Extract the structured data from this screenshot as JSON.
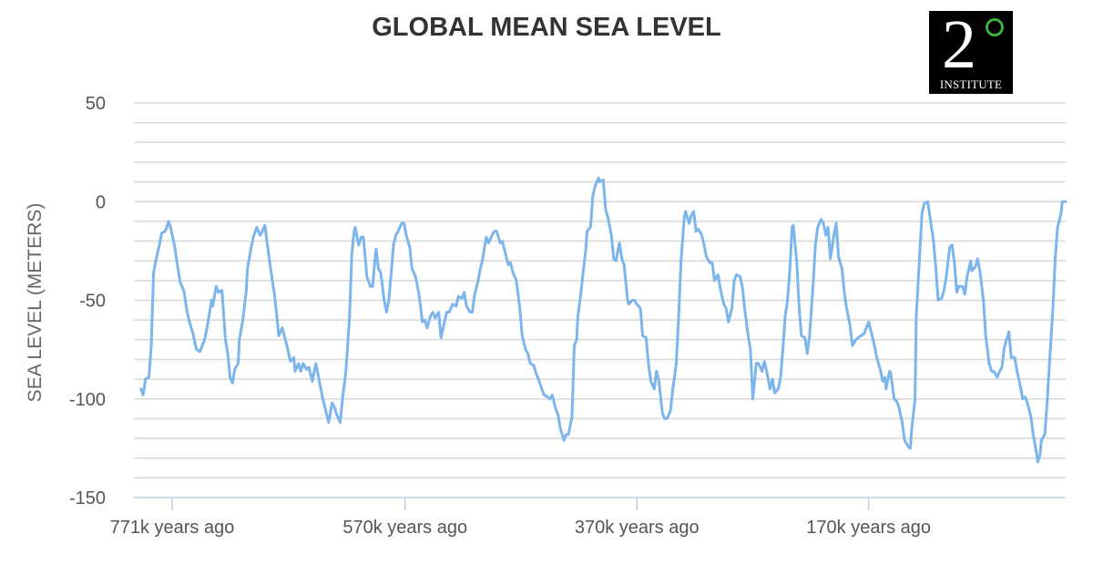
{
  "chart_data": {
    "type": "line",
    "title": "GLOBAL MEAN SEA LEVEL",
    "xlabel": "",
    "ylabel": "SEA LEVEL (METERS)",
    "xlim": [
      804,
      0
    ],
    "ylim": [
      -150,
      50
    ],
    "x_unit": "thousand years ago",
    "x_ticks": [
      771,
      570,
      370,
      170
    ],
    "x_tick_labels": [
      "771k years ago",
      "570k years ago",
      "370k years ago",
      "170k years ago"
    ],
    "y_ticks": [
      50,
      0,
      -50,
      -100,
      -150
    ],
    "y_tick_labels": [
      "50",
      "0",
      "-50",
      "-100",
      "-150"
    ],
    "grid": true,
    "grid_step": 10,
    "line_color": "#7cb5ec",
    "series": [
      {
        "x": [
          798,
          796,
          794,
          791,
          789,
          787,
          784,
          782,
          780,
          777,
          774,
          772,
          769,
          766,
          764,
          761,
          758,
          756,
          753,
          750,
          747,
          743,
          740,
          737,
          736,
          733,
          731,
          728,
          725,
          723,
          721,
          719,
          717,
          714,
          713,
          710,
          707,
          706,
          703,
          701,
          698,
          695,
          694,
          691,
          689,
          686,
          683,
          681,
          679,
          676,
          672,
          669,
          666,
          665,
          662,
          660,
          658,
          655,
          653,
          650,
          647,
          644,
          641,
          638,
          636,
          633,
          631,
          629,
          626,
          624,
          621,
          618,
          616,
          614,
          613,
          610,
          608,
          606,
          604,
          603,
          600,
          598,
          596,
          595,
          593,
          591,
          588,
          586,
          584,
          582,
          580,
          578,
          576,
          573,
          571,
          569,
          566,
          564,
          561,
          558,
          555,
          553,
          551,
          548,
          546,
          544,
          541,
          539,
          536,
          534,
          532,
          529,
          526,
          524,
          521,
          519,
          517,
          514,
          512,
          510,
          507,
          505,
          503,
          500,
          498,
          495,
          493,
          491,
          488,
          486,
          484,
          481,
          479,
          477,
          474,
          471,
          469,
          466,
          464,
          462,
          459,
          457,
          455,
          452,
          450,
          447,
          445,
          443,
          440,
          438,
          436,
          433,
          431,
          429,
          426,
          424,
          422,
          421,
          418,
          416,
          414,
          413,
          410,
          408,
          406,
          403,
          402,
          399,
          397,
          395,
          392,
          390,
          388,
          385,
          383,
          381,
          378,
          377,
          374,
          372,
          370,
          367,
          365,
          362,
          360,
          358,
          355,
          353,
          351,
          348,
          346,
          344,
          341,
          339,
          336,
          334,
          332,
          329,
          328,
          325,
          323,
          321,
          319,
          317,
          314,
          312,
          310,
          307,
          305,
          303,
          300,
          298,
          295,
          293,
          291,
          288,
          286,
          284,
          281,
          279,
          277,
          274,
          272,
          270,
          267,
          265,
          262,
          260,
          258,
          255,
          253,
          251,
          248,
          246,
          244,
          242,
          240,
          238,
          236,
          235,
          232,
          230,
          228,
          225,
          223,
          221,
          218,
          216,
          214,
          211,
          209,
          207,
          205,
          203,
          200,
          198,
          196,
          193,
          191,
          189,
          186,
          184,
          181,
          179,
          177,
          174,
          172,
          170,
          167,
          165,
          163,
          160,
          158,
          156,
          155,
          152,
          151,
          148,
          146,
          144,
          141,
          139,
          136,
          134,
          133,
          130,
          129,
          126,
          124,
          122,
          119,
          117,
          114,
          112,
          110,
          107,
          105,
          103,
          100,
          98,
          96,
          94,
          92,
          89,
          87,
          85,
          82,
          81,
          78,
          76,
          74,
          71,
          69,
          66,
          64,
          62,
          59,
          57,
          55,
          53,
          51,
          49,
          47,
          44,
          42,
          40,
          37,
          35,
          33,
          30,
          28,
          25,
          24,
          22,
          21,
          18,
          16,
          14,
          11,
          9,
          7,
          4,
          3,
          0
        ],
        "y": [
          -95,
          -98,
          -90,
          -89,
          -73,
          -36,
          -27,
          -22,
          -16,
          -15,
          -10,
          -14,
          -22,
          -34,
          -41,
          -45,
          -56,
          -61,
          -67,
          -75,
          -76,
          -70,
          -61,
          -50,
          -53,
          -43,
          -46,
          -45,
          -70,
          -77,
          -89,
          -92,
          -85,
          -82,
          -70,
          -60,
          -45,
          -34,
          -24,
          -18,
          -13,
          -17,
          -16,
          -12,
          -21,
          -34,
          -46,
          -56,
          -68,
          -64,
          -73,
          -81,
          -79,
          -86,
          -82,
          -86,
          -82,
          -85,
          -84,
          -91,
          -82,
          -91,
          -100,
          -107,
          -112,
          -102,
          -104,
          -108,
          -112,
          -100,
          -86,
          -59,
          -27,
          -15,
          -13,
          -22,
          -18,
          -18,
          -31,
          -38,
          -43,
          -43,
          -29,
          -24,
          -34,
          -36,
          -50,
          -56,
          -50,
          -36,
          -22,
          -17,
          -15,
          -11,
          -11,
          -17,
          -23,
          -34,
          -38,
          -47,
          -61,
          -60,
          -64,
          -58,
          -56,
          -59,
          -56,
          -69,
          -61,
          -56,
          -56,
          -52,
          -53,
          -48,
          -49,
          -46,
          -53,
          -56,
          -56,
          -47,
          -40,
          -34,
          -29,
          -18,
          -21,
          -17,
          -15,
          -15,
          -21,
          -20,
          -25,
          -32,
          -31,
          -36,
          -40,
          -54,
          -68,
          -75,
          -77,
          -82,
          -83,
          -87,
          -90,
          -95,
          -98,
          -99,
          -100,
          -98,
          -105,
          -108,
          -115,
          -121,
          -118,
          -118,
          -109,
          -73,
          -70,
          -59,
          -45,
          -34,
          -24,
          -15,
          -13,
          3,
          8,
          12,
          10,
          11,
          -4,
          -8,
          -17,
          -29,
          -30,
          -21,
          -29,
          -32,
          -50,
          -52,
          -50,
          -50,
          -52,
          -54,
          -68,
          -69,
          -82,
          -91,
          -95,
          -86,
          -91,
          -107,
          -110,
          -110,
          -106,
          -95,
          -82,
          -59,
          -31,
          -7,
          -5,
          -11,
          -7,
          -5,
          -15,
          -14,
          -17,
          -22,
          -28,
          -31,
          -31,
          -40,
          -37,
          -44,
          -52,
          -54,
          -61,
          -54,
          -40,
          -37,
          -38,
          -43,
          -54,
          -68,
          -75,
          -100,
          -82,
          -82,
          -86,
          -81,
          -86,
          -95,
          -90,
          -97,
          -95,
          -89,
          -75,
          -58,
          -50,
          -34,
          -13,
          -12,
          -31,
          -54,
          -68,
          -69,
          -77,
          -68,
          -43,
          -22,
          -13,
          -9,
          -11,
          -17,
          -13,
          -29,
          -17,
          -11,
          -28,
          -34,
          -46,
          -54,
          -63,
          -73,
          -70,
          -69,
          -68,
          -67,
          -64,
          -61,
          -68,
          -73,
          -79,
          -85,
          -91,
          -89,
          -95,
          -86,
          -87,
          -100,
          -101,
          -104,
          -112,
          -121,
          -124,
          -125,
          -116,
          -100,
          -59,
          -27,
          -6,
          -1,
          0,
          -8,
          -20,
          -34,
          -50,
          -49,
          -45,
          -38,
          -23,
          -22,
          -31,
          -46,
          -43,
          -43,
          -47,
          -38,
          -30,
          -35,
          -33,
          -29,
          -35,
          -50,
          -68,
          -82,
          -86,
          -86,
          -89,
          -86,
          -84,
          -74,
          -70,
          -66,
          -79,
          -79,
          -86,
          -91,
          -100,
          -99,
          -102,
          -109,
          -118,
          -128,
          -132,
          -128,
          -121,
          -118,
          -102,
          -82,
          -54,
          -29,
          -13,
          -6,
          0,
          0
        ]
      }
    ]
  },
  "logo": {
    "text": "2° INSTITUTE",
    "digit": "2",
    "name": "INSTITUTE"
  }
}
